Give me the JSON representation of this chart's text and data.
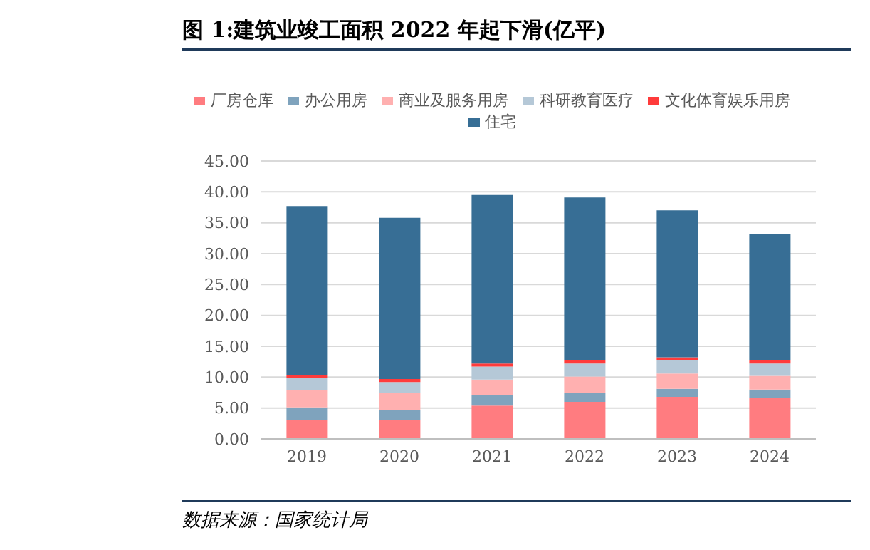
{
  "chart_data": {
    "type": "bar",
    "title": "图 1:建筑业竣工面积 2022 年起下滑(亿平)",
    "annotations": [
      "数据来源：国家统计局"
    ],
    "categories": [
      "2019",
      "2020",
      "2021",
      "2022",
      "2023",
      "2024"
    ],
    "stacked": true,
    "series": [
      {
        "name": "厂房仓库",
        "color": "#ff7c80",
        "values": [
          3.1,
          3.1,
          5.4,
          6.0,
          6.8,
          6.7
        ]
      },
      {
        "name": "办公用房",
        "color": "#7fa3bd",
        "values": [
          2.0,
          1.6,
          1.7,
          1.5,
          1.3,
          1.3
        ]
      },
      {
        "name": "商业及服务用房",
        "color": "#ffb0b0",
        "values": [
          2.8,
          2.7,
          2.5,
          2.6,
          2.5,
          2.2
        ]
      },
      {
        "name": "科研教育医疗",
        "color": "#b5c8d7",
        "values": [
          1.9,
          1.8,
          2.1,
          2.1,
          2.1,
          2.0
        ]
      },
      {
        "name": "文化体育娱乐用房",
        "color": "#ff3b3b",
        "values": [
          0.5,
          0.5,
          0.5,
          0.5,
          0.5,
          0.5
        ]
      },
      {
        "name": "住宅",
        "color": "#376e95",
        "values": [
          27.4,
          26.1,
          27.3,
          26.4,
          23.8,
          20.5
        ]
      }
    ],
    "ylim": [
      0,
      45
    ],
    "yticks": [
      {
        "value": 0,
        "label": "0.00"
      },
      {
        "value": 5,
        "label": "5.00"
      },
      {
        "value": 10,
        "label": "10.00"
      },
      {
        "value": 15,
        "label": "15.00"
      },
      {
        "value": 20,
        "label": "20.00"
      },
      {
        "value": 25,
        "label": "25.00"
      },
      {
        "value": 30,
        "label": "30.00"
      },
      {
        "value": 35,
        "label": "35.00"
      },
      {
        "value": 40,
        "label": "40.00"
      },
      {
        "value": 45,
        "label": "45.00"
      }
    ],
    "grid": "y",
    "legend": "top"
  }
}
